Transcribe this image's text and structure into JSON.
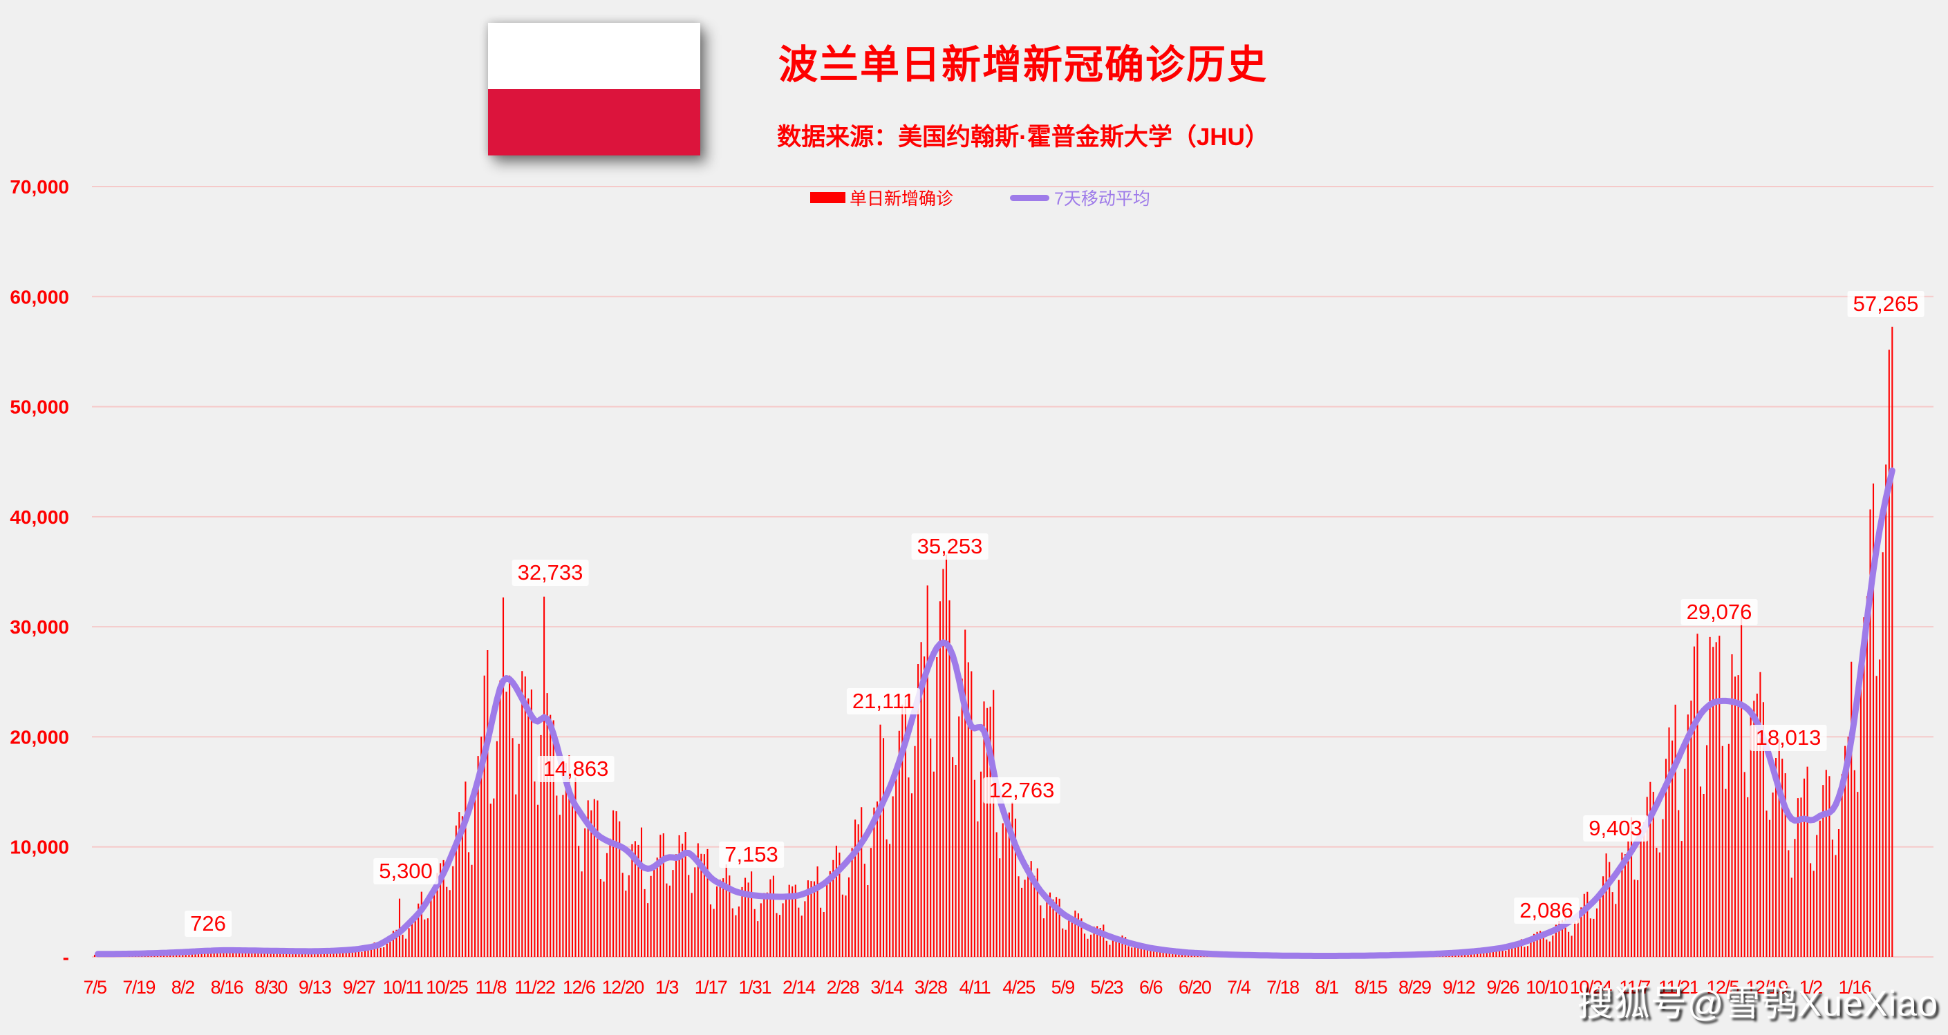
{
  "page": {
    "background": "#f0f0f0"
  },
  "header": {
    "flag": {
      "country": "Poland",
      "top_color": "#ffffff",
      "bottom_color": "#dc143c"
    },
    "title": "波兰单日新增新冠确诊历史",
    "subtitle": "数据来源：美国约翰斯·霍普金斯大学（JHU）",
    "text_color": "#fe0000"
  },
  "legend": {
    "bar_label": "单日新增确诊",
    "line_label": "7天移动平均",
    "bar_color": "#ff0000",
    "line_color": "#9e7be9"
  },
  "watermark": "搜狐号@雪鸮XueXiao",
  "chart_data": {
    "type": "bar",
    "title": "波兰单日新增新冠确诊历史",
    "xlabel": "",
    "ylabel": "",
    "grid": true,
    "grid_color": "#f5c9c9",
    "axis_text_color": "#fe0000",
    "legend_position": "top",
    "ylim": [
      0,
      70000
    ],
    "y_ticks": [
      {
        "value": 70000,
        "label": "70,000"
      },
      {
        "value": 60000,
        "label": "60,000"
      },
      {
        "value": 50000,
        "label": "50,000"
      },
      {
        "value": 40000,
        "label": "40,000"
      },
      {
        "value": 30000,
        "label": "30,000"
      },
      {
        "value": 20000,
        "label": "20,000"
      },
      {
        "value": 10000,
        "label": "10,000"
      },
      {
        "value": 0,
        "label": "-"
      }
    ],
    "x_tick_interval_days": 14,
    "x_tick_labels": [
      "7/5",
      "7/19",
      "8/2",
      "8/16",
      "8/30",
      "9/13",
      "9/27",
      "10/11",
      "10/25",
      "11/8",
      "11/22",
      "12/6",
      "12/20",
      "1/3",
      "1/17",
      "1/31",
      "2/14",
      "2/28",
      "3/14",
      "3/28",
      "4/11",
      "4/25",
      "5/9",
      "5/23",
      "6/6",
      "6/20",
      "7/4",
      "7/18",
      "8/1",
      "8/15",
      "8/29",
      "9/12",
      "9/26",
      "10/10",
      "10/24",
      "11/7",
      "11/21",
      "12/5",
      "12/19",
      "1/2",
      "1/16"
    ],
    "days_total": 573,
    "series": [
      {
        "name": "单日新增确诊",
        "type": "bar",
        "color": "#ff0000"
      },
      {
        "name": "7天移动平均",
        "type": "line",
        "color": "#9e7be9"
      }
    ],
    "ma7_points": [
      [
        1,
        260
      ],
      [
        6,
        270
      ],
      [
        13,
        295
      ],
      [
        20,
        345
      ],
      [
        27,
        425
      ],
      [
        34,
        535
      ],
      [
        41,
        610
      ],
      [
        48,
        590
      ],
      [
        55,
        555
      ],
      [
        62,
        530
      ],
      [
        69,
        505
      ],
      [
        76,
        550
      ],
      [
        83,
        680
      ],
      [
        90,
        1000
      ],
      [
        97,
        2200
      ],
      [
        104,
        4200
      ],
      [
        111,
        7500
      ],
      [
        118,
        12300
      ],
      [
        122,
        16000
      ],
      [
        125,
        19500
      ],
      [
        128,
        23500
      ],
      [
        130,
        25700
      ],
      [
        133,
        25100
      ],
      [
        135,
        24000
      ],
      [
        138,
        22400
      ],
      [
        141,
        20800
      ],
      [
        143,
        22400
      ],
      [
        145,
        21300
      ],
      [
        148,
        18300
      ],
      [
        150,
        15800
      ],
      [
        152,
        14000
      ],
      [
        154,
        13400
      ],
      [
        156,
        12400
      ],
      [
        160,
        11000
      ],
      [
        164,
        10400
      ],
      [
        168,
        10000
      ],
      [
        171,
        9300
      ],
      [
        174,
        8100
      ],
      [
        177,
        7900
      ],
      [
        180,
        8700
      ],
      [
        183,
        9200
      ],
      [
        186,
        8800
      ],
      [
        188,
        9800
      ],
      [
        190,
        9300
      ],
      [
        193,
        8300
      ],
      [
        196,
        7100
      ],
      [
        200,
        6500
      ],
      [
        204,
        5900
      ],
      [
        209,
        5600
      ],
      [
        214,
        5500
      ],
      [
        219,
        5450
      ],
      [
        224,
        5550
      ],
      [
        228,
        6000
      ],
      [
        232,
        6600
      ],
      [
        237,
        7900
      ],
      [
        242,
        9500
      ],
      [
        246,
        11200
      ],
      [
        250,
        13500
      ],
      [
        254,
        16000
      ],
      [
        258,
        19500
      ],
      [
        262,
        23500
      ],
      [
        265,
        26300
      ],
      [
        268,
        28300
      ],
      [
        270,
        28800
      ],
      [
        272,
        28400
      ],
      [
        274,
        26800
      ],
      [
        276,
        23800
      ],
      [
        278,
        21000
      ],
      [
        280,
        20400
      ],
      [
        282,
        21400
      ],
      [
        284,
        20200
      ],
      [
        286,
        16800
      ],
      [
        288,
        14000
      ],
      [
        290,
        12600
      ],
      [
        293,
        10000
      ],
      [
        296,
        8300
      ],
      [
        300,
        6300
      ],
      [
        304,
        5000
      ],
      [
        308,
        3900
      ],
      [
        313,
        3100
      ],
      [
        318,
        2400
      ],
      [
        324,
        1750
      ],
      [
        330,
        1200
      ],
      [
        336,
        800
      ],
      [
        342,
        560
      ],
      [
        348,
        390
      ],
      [
        355,
        280
      ],
      [
        362,
        200
      ],
      [
        370,
        150
      ],
      [
        378,
        115
      ],
      [
        386,
        98
      ],
      [
        394,
        95
      ],
      [
        402,
        108
      ],
      [
        410,
        140
      ],
      [
        418,
        195
      ],
      [
        426,
        270
      ],
      [
        434,
        390
      ],
      [
        441,
        560
      ],
      [
        448,
        820
      ],
      [
        454,
        1250
      ],
      [
        460,
        1900
      ],
      [
        466,
        2600
      ],
      [
        472,
        3700
      ],
      [
        478,
        5300
      ],
      [
        484,
        7500
      ],
      [
        490,
        10000
      ],
      [
        496,
        13200
      ],
      [
        502,
        16800
      ],
      [
        507,
        20000
      ],
      [
        511,
        22200
      ],
      [
        515,
        23200
      ],
      [
        519,
        23300
      ],
      [
        523,
        23100
      ],
      [
        527,
        22400
      ],
      [
        530,
        20800
      ],
      [
        533,
        18200
      ],
      [
        536,
        15200
      ],
      [
        538,
        13300
      ],
      [
        540,
        12300
      ],
      [
        542,
        12300
      ],
      [
        544,
        12800
      ],
      [
        546,
        12200
      ],
      [
        548,
        12600
      ],
      [
        550,
        13100
      ],
      [
        552,
        12900
      ],
      [
        554,
        13600
      ],
      [
        556,
        15200
      ],
      [
        558,
        17800
      ],
      [
        560,
        21500
      ],
      [
        562,
        26000
      ],
      [
        564,
        30800
      ],
      [
        566,
        35300
      ],
      [
        568,
        39000
      ],
      [
        570,
        41800
      ],
      [
        572,
        44200
      ]
    ],
    "bar_model": {
      "weekday_multipliers": [
        0.74,
        0.64,
        0.88,
        1.08,
        1.18,
        1.22,
        1.28
      ],
      "wiggle": [
        {
          "amp": 0.07,
          "freq": 2.137
        },
        {
          "amp": 0.05,
          "freq": 0.731
        }
      ]
    },
    "bar_overrides": {
      "34": 726,
      "97": 5300,
      "124": 25571,
      "125": 27875,
      "131": 24100,
      "132": 25570,
      "138": 23500,
      "139": 24300,
      "143": 32733,
      "145": 22000,
      "146": 21500,
      "152": 14863,
      "153": 16300,
      "200": 7153,
      "250": 21111,
      "270": 35253,
      "272": 32400,
      "290": 12763,
      "458": 2086,
      "481": 9403,
      "514": 29076,
      "521": 27500,
      "537": 18013,
      "572": 57265
    },
    "annotations": [
      {
        "text": "726",
        "bar_day": 34,
        "bar_value": 726,
        "label_day": 36,
        "label_value": 3000
      },
      {
        "text": "5,300",
        "bar_day": 97,
        "bar_value": 5300,
        "label_day": 99,
        "label_value": 7800
      },
      {
        "text": "32,733",
        "bar_day": 143,
        "bar_value": 32733,
        "label_day": 145,
        "label_value": 34900
      },
      {
        "text": "14,863",
        "bar_day": 152,
        "bar_value": 14863,
        "label_day": 153,
        "label_value": 17100
      },
      {
        "text": "7,153",
        "bar_day": 200,
        "bar_value": 7153,
        "label_day": 209,
        "label_value": 9300
      },
      {
        "text": "21,111",
        "bar_day": 250,
        "bar_value": 21111,
        "label_day": 251,
        "label_value": 23200
      },
      {
        "text": "35,253",
        "bar_day": 270,
        "bar_value": 35253,
        "label_day": 272,
        "label_value": 37300
      },
      {
        "text": "12,763",
        "bar_day": 290,
        "bar_value": 12763,
        "label_day": 295,
        "label_value": 15100
      },
      {
        "text": "2,086",
        "bar_day": 458,
        "bar_value": 2086,
        "label_day": 462,
        "label_value": 4200
      },
      {
        "text": "9,403",
        "bar_day": 481,
        "bar_value": 9403,
        "label_day": 484,
        "label_value": 11700
      },
      {
        "text": "29,076",
        "bar_day": 514,
        "bar_value": 29076,
        "label_day": 517,
        "label_value": 31300
      },
      {
        "text": "18,013",
        "bar_day": 537,
        "bar_value": 18013,
        "label_day": 539,
        "label_value": 19900
      },
      {
        "text": "57,265",
        "bar_day": 572,
        "bar_value": 57265,
        "label_day": 570,
        "label_value": 59300
      }
    ]
  }
}
